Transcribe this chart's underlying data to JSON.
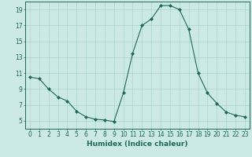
{
  "x": [
    0,
    1,
    2,
    3,
    4,
    5,
    6,
    7,
    8,
    9,
    10,
    11,
    12,
    13,
    14,
    15,
    16,
    17,
    18,
    19,
    20,
    21,
    22,
    23
  ],
  "y": [
    10.5,
    10.3,
    9.0,
    8.0,
    7.5,
    6.2,
    5.5,
    5.2,
    5.1,
    4.9,
    8.5,
    13.5,
    17.0,
    17.8,
    19.5,
    19.5,
    19.0,
    16.5,
    11.0,
    8.5,
    7.2,
    6.1,
    5.7,
    5.5
  ],
  "xlabel": "Humidex (Indice chaleur)",
  "ylim": [
    4,
    20
  ],
  "xlim": [
    -0.5,
    23.5
  ],
  "yticks": [
    5,
    7,
    9,
    11,
    13,
    15,
    17,
    19
  ],
  "xticks": [
    0,
    1,
    2,
    3,
    4,
    5,
    6,
    7,
    8,
    9,
    10,
    11,
    12,
    13,
    14,
    15,
    16,
    17,
    18,
    19,
    20,
    21,
    22,
    23
  ],
  "line_color": "#1a6b5a",
  "marker": "D",
  "marker_size": 2.0,
  "bg_color": "#cce9e5",
  "grid_color": "#aad4ce",
  "axis_color": "#1a6b5a",
  "tick_label_color": "#1a6b5a",
  "xlabel_color": "#1a6b5a",
  "xlabel_fontsize": 6.5,
  "tick_fontsize": 5.5
}
